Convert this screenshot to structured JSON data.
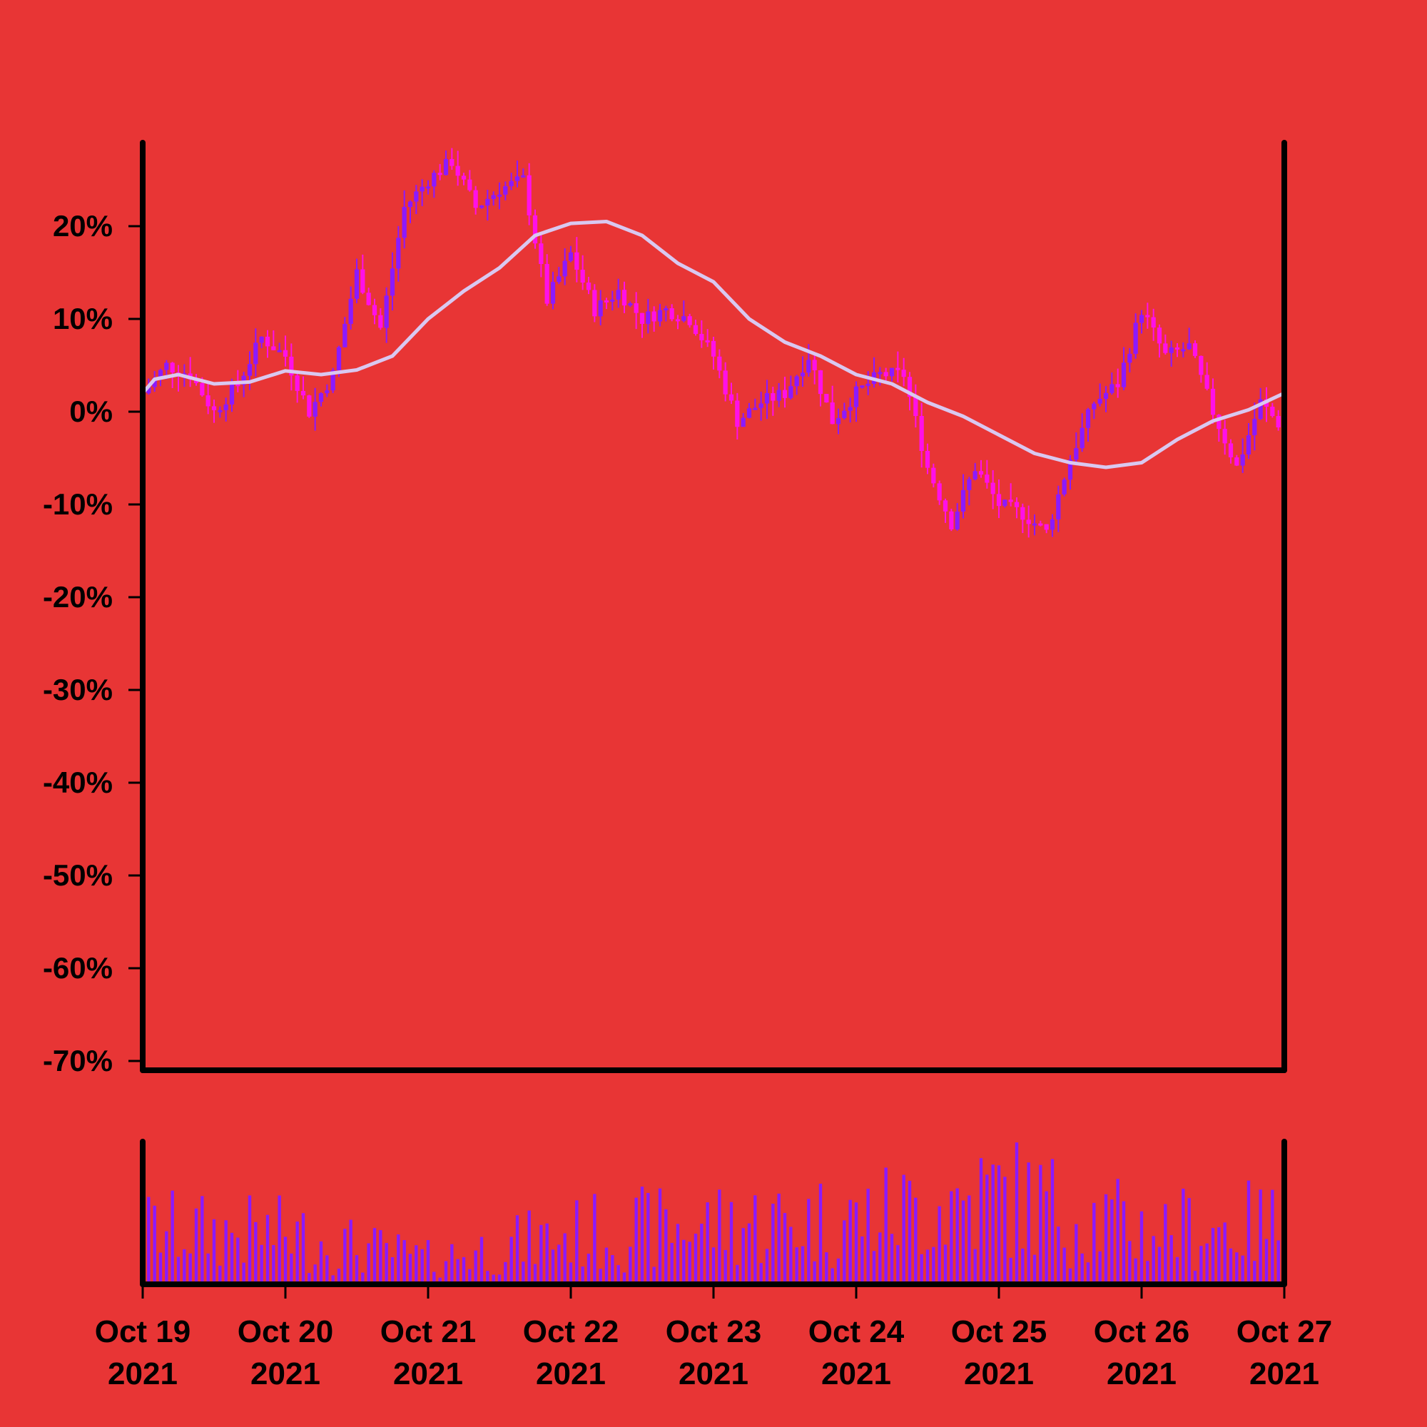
{
  "chart_data": {
    "type": "candlestick",
    "y_axis_format": "percent",
    "ylim": [
      -71,
      29
    ],
    "yticks": [
      20,
      10,
      0,
      -10,
      -20,
      -30,
      -40,
      -50,
      -60,
      -70
    ],
    "ytick_labels": [
      "20%",
      "10%",
      "0%",
      "-10%",
      "-20%",
      "-30%",
      "-40%",
      "-50%",
      "-60%",
      "-70%"
    ],
    "xlim": [
      "2021-10-19",
      "2021-10-27"
    ],
    "xtick_labels": [
      {
        "date": "Oct 19",
        "year": "2021"
      },
      {
        "date": "Oct 20",
        "year": "2021"
      },
      {
        "date": "Oct 21",
        "year": "2021"
      },
      {
        "date": "Oct 22",
        "year": "2021"
      },
      {
        "date": "Oct 23",
        "year": "2021"
      },
      {
        "date": "Oct 24",
        "year": "2021"
      },
      {
        "date": "Oct 25",
        "year": "2021"
      },
      {
        "date": "Oct 26",
        "year": "2021"
      },
      {
        "date": "Oct 27",
        "year": "2021"
      }
    ],
    "price_path": [
      [
        "2021-10-19T00:00",
        2
      ],
      [
        "2021-10-19T04:00",
        5
      ],
      [
        "2021-10-19T08:00",
        4
      ],
      [
        "2021-10-19T12:00",
        0
      ],
      [
        "2021-10-19T16:00",
        3
      ],
      [
        "2021-10-19T20:00",
        8
      ],
      [
        "2021-10-20T00:00",
        6
      ],
      [
        "2021-10-20T04:00",
        0
      ],
      [
        "2021-10-20T08:00",
        4
      ],
      [
        "2021-10-20T12:00",
        15
      ],
      [
        "2021-10-20T16:00",
        9
      ],
      [
        "2021-10-20T20:00",
        22
      ],
      [
        "2021-10-21T00:00",
        25
      ],
      [
        "2021-10-21T04:00",
        27
      ],
      [
        "2021-10-21T08:00",
        22
      ],
      [
        "2021-10-21T12:00",
        24
      ],
      [
        "2021-10-21T16:00",
        25
      ],
      [
        "2021-10-21T20:00",
        12
      ],
      [
        "2021-10-22T00:00",
        17
      ],
      [
        "2021-10-22T04:00",
        11
      ],
      [
        "2021-10-22T08:00",
        13
      ],
      [
        "2021-10-22T12:00",
        10
      ],
      [
        "2021-10-22T16:00",
        11
      ],
      [
        "2021-10-22T20:00",
        10
      ],
      [
        "2021-10-23T00:00",
        6
      ],
      [
        "2021-10-23T04:00",
        -1
      ],
      [
        "2021-10-23T08:00",
        1
      ],
      [
        "2021-10-23T12:00",
        2
      ],
      [
        "2021-10-23T16:00",
        6
      ],
      [
        "2021-10-23T20:00",
        -1
      ],
      [
        "2021-10-24T00:00",
        2
      ],
      [
        "2021-10-24T04:00",
        4
      ],
      [
        "2021-10-24T08:00",
        4
      ],
      [
        "2021-10-24T12:00",
        -6
      ],
      [
        "2021-10-24T16:00",
        -12
      ],
      [
        "2021-10-24T20:00",
        -6
      ],
      [
        "2021-10-25T00:00",
        -10
      ],
      [
        "2021-10-25T04:00",
        -11
      ],
      [
        "2021-10-25T08:00",
        -13
      ],
      [
        "2021-10-25T12:00",
        -5
      ],
      [
        "2021-10-25T16:00",
        1
      ],
      [
        "2021-10-25T20:00",
        3
      ],
      [
        "2021-10-26T00:00",
        11
      ],
      [
        "2021-10-26T04:00",
        6
      ],
      [
        "2021-10-26T08:00",
        7
      ],
      [
        "2021-10-26T12:00",
        0
      ],
      [
        "2021-10-26T16:00",
        -6
      ],
      [
        "2021-10-26T20:00",
        1
      ],
      [
        "2021-10-27T00:00",
        -2
      ]
    ],
    "moving_average": [
      [
        "2021-10-19T00:00",
        2
      ],
      [
        "2021-10-19T02:00",
        3.5
      ],
      [
        "2021-10-19T06:00",
        4
      ],
      [
        "2021-10-19T12:00",
        3
      ],
      [
        "2021-10-19T18:00",
        3.2
      ],
      [
        "2021-10-20T00:00",
        4.4
      ],
      [
        "2021-10-20T06:00",
        4
      ],
      [
        "2021-10-20T12:00",
        4.5
      ],
      [
        "2021-10-20T18:00",
        6
      ],
      [
        "2021-10-21T00:00",
        10
      ],
      [
        "2021-10-21T06:00",
        13
      ],
      [
        "2021-10-21T12:00",
        15.5
      ],
      [
        "2021-10-21T18:00",
        19
      ],
      [
        "2021-10-22T00:00",
        20.3
      ],
      [
        "2021-10-22T06:00",
        20.5
      ],
      [
        "2021-10-22T12:00",
        19
      ],
      [
        "2021-10-22T18:00",
        16
      ],
      [
        "2021-10-23T00:00",
        14
      ],
      [
        "2021-10-23T06:00",
        10
      ],
      [
        "2021-10-23T12:00",
        7.5
      ],
      [
        "2021-10-23T18:00",
        6
      ],
      [
        "2021-10-24T00:00",
        4
      ],
      [
        "2021-10-24T06:00",
        3
      ],
      [
        "2021-10-24T12:00",
        1
      ],
      [
        "2021-10-24T18:00",
        -0.5
      ],
      [
        "2021-10-25T00:00",
        -2.5
      ],
      [
        "2021-10-25T06:00",
        -4.5
      ],
      [
        "2021-10-25T12:00",
        -5.5
      ],
      [
        "2021-10-25T18:00",
        -6
      ],
      [
        "2021-10-26T00:00",
        -5.5
      ],
      [
        "2021-10-26T06:00",
        -3
      ],
      [
        "2021-10-26T12:00",
        -1
      ],
      [
        "2021-10-26T18:00",
        0.2
      ],
      [
        "2021-10-27T00:00",
        2
      ]
    ],
    "volume_path": [
      [
        "2021-10-19T00:00",
        55
      ],
      [
        "2021-10-20T00:00",
        50
      ],
      [
        "2021-10-21T00:00",
        25
      ],
      [
        "2021-10-22T00:00",
        50
      ],
      [
        "2021-10-23T00:00",
        60
      ],
      [
        "2021-10-24T00:00",
        65
      ],
      [
        "2021-10-25T00:00",
        90
      ],
      [
        "2021-10-26T00:00",
        55
      ],
      [
        "2021-10-27T00:00",
        60
      ]
    ],
    "colors": {
      "background": "#e83535",
      "up_candle": "#8b1aff",
      "down_candle": "#ff10e8",
      "moving_average_line": "#d9c8f0",
      "volume_bar": "#8b1aff",
      "axis": "#000000"
    },
    "grid": false,
    "legend": "none"
  }
}
